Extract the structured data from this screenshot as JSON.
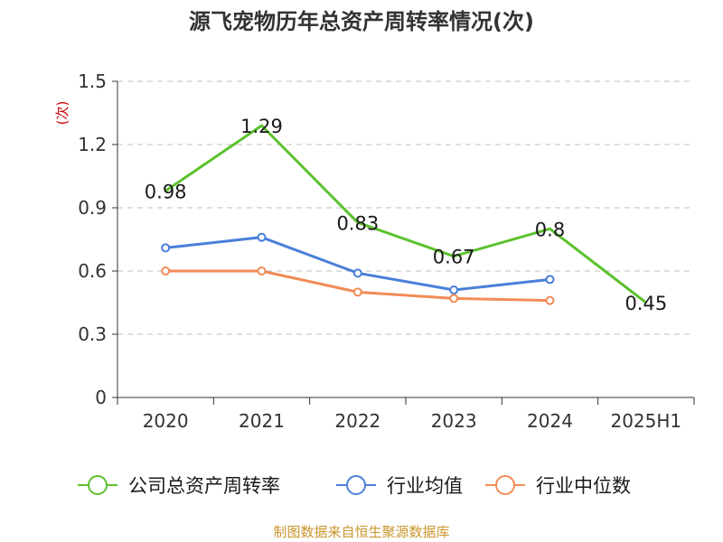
{
  "chart_data": {
    "type": "line",
    "title": "源飞宠物历年总资产周转率情况(次)",
    "ylabel": "(次)",
    "xlabel": "",
    "categories": [
      "2020",
      "2021",
      "2022",
      "2023",
      "2024",
      "2025H1"
    ],
    "ylim": [
      0,
      1.5
    ],
    "yticks": [
      "0",
      "0.3",
      "0.6",
      "0.9",
      "1.2",
      "1.5"
    ],
    "ytick_values": [
      0,
      0.3,
      0.6,
      0.9,
      1.2,
      1.5
    ],
    "grid": true,
    "legend_position": "bottom",
    "series": [
      {
        "name": "公司总资产周转率",
        "color": "#5cc12e",
        "values": [
          0.98,
          1.29,
          0.83,
          0.67,
          0.8,
          0.45
        ],
        "labels": [
          "0.98",
          "1.29",
          "0.83",
          "0.67",
          "0.8",
          "0.45"
        ],
        "markers": false
      },
      {
        "name": "行业均值",
        "color": "#4a7fd9",
        "values": [
          0.71,
          0.76,
          0.59,
          0.51,
          0.56,
          null
        ],
        "markers": true
      },
      {
        "name": "行业中位数",
        "color": "#f28b57",
        "values": [
          0.6,
          0.6,
          0.5,
          0.47,
          0.46,
          null
        ],
        "markers": true
      }
    ]
  },
  "source_note": "制图数据来自恒生聚源数据库",
  "colors": {
    "axis": "#333333",
    "grid": "#bfbfbf",
    "ylabel": "#cc0000",
    "source": "#c8962c"
  }
}
